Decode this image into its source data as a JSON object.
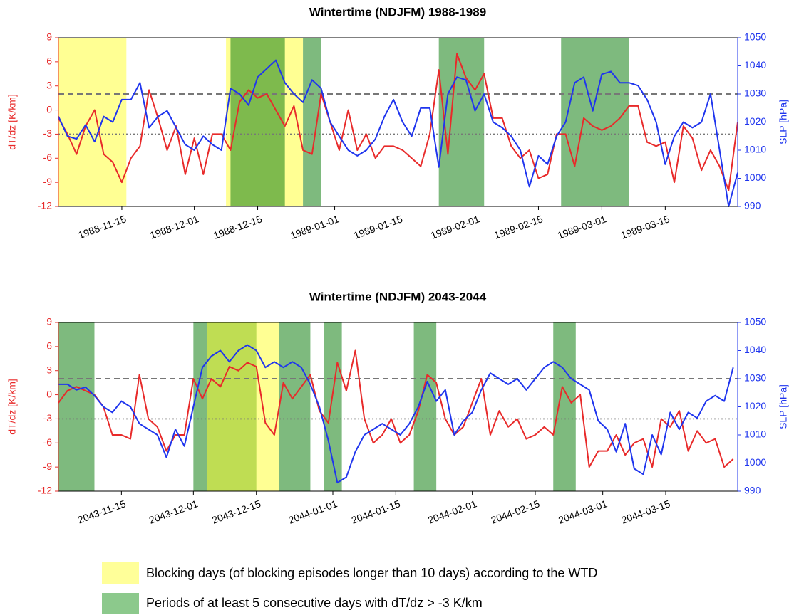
{
  "chart_data": [
    {
      "type": "line",
      "title": "Wintertime (NDJFM) 1988-1989",
      "ylabel": "dT/dz [K/km]",
      "y2label": "SLP [hPa]",
      "x": [
        "1988-11-01",
        "1988-11-03",
        "1988-11-05",
        "1988-11-07",
        "1988-11-09",
        "1988-11-11",
        "1988-11-13",
        "1988-11-15",
        "1988-11-17",
        "1988-11-19",
        "1988-11-21",
        "1988-11-23",
        "1988-11-25",
        "1988-11-27",
        "1988-11-29",
        "1988-12-01",
        "1988-12-03",
        "1988-12-05",
        "1988-12-07",
        "1988-12-09",
        "1988-12-11",
        "1988-12-13",
        "1988-12-15",
        "1988-12-17",
        "1988-12-19",
        "1988-12-21",
        "1988-12-23",
        "1988-12-25",
        "1988-12-27",
        "1988-12-29",
        "1988-12-31",
        "1989-01-02",
        "1989-01-04",
        "1989-01-06",
        "1989-01-08",
        "1989-01-10",
        "1989-01-12",
        "1989-01-14",
        "1989-01-16",
        "1989-01-18",
        "1989-01-20",
        "1989-01-22",
        "1989-01-24",
        "1989-01-26",
        "1989-01-28",
        "1989-01-30",
        "1989-02-01",
        "1989-02-03",
        "1989-02-05",
        "1989-02-07",
        "1989-02-09",
        "1989-02-11",
        "1989-02-13",
        "1989-02-15",
        "1989-02-17",
        "1989-02-19",
        "1989-02-21",
        "1989-02-23",
        "1989-02-25",
        "1989-02-27",
        "1989-03-01",
        "1989-03-03",
        "1989-03-05",
        "1989-03-07",
        "1989-03-09",
        "1989-03-11",
        "1989-03-13",
        "1989-03-15",
        "1989-03-17",
        "1989-03-19",
        "1989-03-21",
        "1989-03-23",
        "1989-03-25",
        "1989-03-27",
        "1989-03-29",
        "1989-03-31"
      ],
      "xlim": [
        "1988-11-01",
        "1989-03-31"
      ],
      "xticks": [
        "1988-11-15",
        "1988-12-01",
        "1988-12-15",
        "1989-01-01",
        "1989-01-15",
        "1989-02-01",
        "1989-02-15",
        "1989-03-01",
        "1989-03-15"
      ],
      "ylim": [
        -12,
        9
      ],
      "yticks": [
        -12,
        -9,
        -6,
        -3,
        0,
        3,
        6,
        9
      ],
      "y2lim": [
        990,
        1050
      ],
      "y2ticks": [
        990,
        1000,
        1010,
        1020,
        1030,
        1040,
        1050
      ],
      "hlines": [
        {
          "value": 2,
          "style": "dashed"
        },
        {
          "value": -3,
          "style": "dotted"
        }
      ],
      "spans": [
        {
          "start": "1988-11-01",
          "end": "1988-11-16",
          "color": "yellow"
        },
        {
          "start": "1988-12-08",
          "end": "1988-12-25",
          "color": "yellow"
        },
        {
          "start": "1988-12-09",
          "end": "1988-12-21",
          "color": "green"
        },
        {
          "start": "1988-12-25",
          "end": "1988-12-29",
          "color": "green"
        },
        {
          "start": "1989-01-24",
          "end": "1989-02-03",
          "color": "green"
        },
        {
          "start": "1989-02-20",
          "end": "1989-03-07",
          "color": "green"
        }
      ],
      "series": [
        {
          "color": "#e82a2a",
          "values": [
            -1,
            -3,
            -5.5,
            -2,
            0,
            -5.5,
            -6.5,
            -9,
            -6,
            -4.5,
            2.5,
            -1,
            -5,
            -2,
            -8,
            -3.5,
            -8,
            -3,
            -3,
            -5,
            1,
            2.5,
            1.5,
            2,
            0,
            -2,
            0.5,
            -5,
            -5.5,
            2,
            -1.5,
            -5,
            0,
            -5,
            -3,
            -6,
            -4.5,
            -4.5,
            -5,
            -6,
            -7,
            -3,
            5,
            -5.5,
            7,
            4,
            2.5,
            4.5,
            -1,
            -1,
            -4.5,
            -6,
            -5,
            -8.5,
            -8,
            -3,
            -3,
            -7,
            -1,
            -2,
            -2.5,
            -2,
            -1,
            0.5,
            0.5,
            -4,
            -4.5,
            -4,
            -9,
            -2,
            -3.5,
            -7.5,
            -5,
            -7,
            -10,
            -1.5
          ]
        },
        {
          "color": "#1f35ee",
          "axis": "y2",
          "values": [
            1022,
            1015,
            1014,
            1019,
            1013,
            1022,
            1020,
            1028,
            1028,
            1034,
            1018,
            1022,
            1024,
            1018,
            1012,
            1010,
            1015,
            1012,
            1010,
            1032,
            1030,
            1026,
            1036,
            1039,
            1042,
            1034,
            1030,
            1027,
            1035,
            1032,
            1020,
            1015,
            1010,
            1008,
            1010,
            1014,
            1022,
            1028,
            1020,
            1015,
            1025,
            1025,
            1004,
            1030,
            1036,
            1035,
            1024,
            1030,
            1020,
            1018,
            1015,
            1010,
            997,
            1008,
            1005,
            1015,
            1020,
            1034,
            1036,
            1024,
            1037,
            1038,
            1034,
            1034,
            1033,
            1028,
            1020,
            1005,
            1015,
            1020,
            1018,
            1020,
            1030,
            1010,
            990,
            1002
          ]
        }
      ]
    },
    {
      "type": "line",
      "title": "Wintertime (NDJFM) 2043-2044",
      "ylabel": "dT/dz [K/km]",
      "y2label": "SLP [hPa]",
      "x": [
        "2043-11-01",
        "2043-11-03",
        "2043-11-05",
        "2043-11-07",
        "2043-11-09",
        "2043-11-11",
        "2043-11-13",
        "2043-11-15",
        "2043-11-17",
        "2043-11-19",
        "2043-11-21",
        "2043-11-23",
        "2043-11-25",
        "2043-11-27",
        "2043-11-29",
        "2043-12-01",
        "2043-12-03",
        "2043-12-05",
        "2043-12-07",
        "2043-12-09",
        "2043-12-11",
        "2043-12-13",
        "2043-12-15",
        "2043-12-17",
        "2043-12-19",
        "2043-12-21",
        "2043-12-23",
        "2043-12-25",
        "2043-12-27",
        "2043-12-29",
        "2043-12-31",
        "2044-01-02",
        "2044-01-04",
        "2044-01-06",
        "2044-01-08",
        "2044-01-10",
        "2044-01-12",
        "2044-01-14",
        "2044-01-16",
        "2044-01-18",
        "2044-01-20",
        "2044-01-22",
        "2044-01-24",
        "2044-01-26",
        "2044-01-28",
        "2044-01-30",
        "2044-02-01",
        "2044-02-03",
        "2044-02-05",
        "2044-02-07",
        "2044-02-09",
        "2044-02-11",
        "2044-02-13",
        "2044-02-15",
        "2044-02-17",
        "2044-02-19",
        "2044-02-21",
        "2044-02-23",
        "2044-02-25",
        "2044-02-27",
        "2044-02-29",
        "2044-03-02",
        "2044-03-04",
        "2044-03-06",
        "2044-03-08",
        "2044-03-10",
        "2044-03-12",
        "2044-03-14",
        "2044-03-16",
        "2044-03-18",
        "2044-03-20",
        "2044-03-22",
        "2044-03-24",
        "2044-03-26",
        "2044-03-28",
        "2044-03-30"
      ],
      "xlim": [
        "2043-11-01",
        "2044-03-31"
      ],
      "xticks": [
        "2043-11-15",
        "2043-12-01",
        "2043-12-15",
        "2044-01-01",
        "2044-01-15",
        "2044-02-01",
        "2044-02-15",
        "2044-03-01",
        "2044-03-15"
      ],
      "ylim": [
        -12,
        9
      ],
      "yticks": [
        -12,
        -9,
        -6,
        -3,
        0,
        3,
        6,
        9
      ],
      "y2lim": [
        990,
        1050
      ],
      "y2ticks": [
        990,
        1000,
        1010,
        1020,
        1030,
        1040,
        1050
      ],
      "hlines": [
        {
          "value": 2,
          "style": "dashed"
        },
        {
          "value": -3,
          "style": "dotted"
        }
      ],
      "spans": [
        {
          "start": "2043-11-01",
          "end": "2043-11-09",
          "color": "green"
        },
        {
          "start": "2043-12-01",
          "end": "2043-12-15",
          "color": "green"
        },
        {
          "start": "2043-12-04",
          "end": "2043-12-20",
          "color": "yellow"
        },
        {
          "start": "2043-12-20",
          "end": "2043-12-27",
          "color": "green"
        },
        {
          "start": "2043-12-30",
          "end": "2044-01-03",
          "color": "green"
        },
        {
          "start": "2044-01-19",
          "end": "2044-01-24",
          "color": "green"
        },
        {
          "start": "2044-02-19",
          "end": "2044-02-24",
          "color": "green"
        }
      ],
      "series": [
        {
          "color": "#e82a2a",
          "values": [
            -1,
            0.5,
            1,
            0.5,
            0,
            -1.5,
            -5,
            -5,
            -5.5,
            2.5,
            -3,
            -4,
            -7,
            -5,
            -5,
            2,
            -0.5,
            2,
            1,
            3.5,
            3,
            4,
            3.5,
            -3.5,
            -5,
            1.5,
            -0.5,
            1,
            2.5,
            -2,
            -3.5,
            4,
            0.5,
            5.5,
            -3,
            -6,
            -5,
            -3,
            -6,
            -5,
            -2,
            2.5,
            1.5,
            -3,
            -5,
            -4,
            -1,
            2,
            -5,
            -2,
            -4,
            -3,
            -5.5,
            -5,
            -4,
            -5,
            1,
            -1,
            0,
            -9,
            -7,
            -7,
            -5,
            -7.5,
            -6,
            -5.5,
            -9,
            -3,
            -4,
            -2,
            -7,
            -4.5,
            -6,
            -5.5,
            -9,
            -8
          ]
        },
        {
          "color": "#1f35ee",
          "axis": "y2",
          "values": [
            1028,
            1028,
            1026,
            1027,
            1024,
            1020,
            1018,
            1022,
            1020,
            1014,
            1012,
            1010,
            1002,
            1012,
            1006,
            1020,
            1034,
            1038,
            1040,
            1036,
            1040,
            1042,
            1040,
            1034,
            1036,
            1034,
            1036,
            1034,
            1028,
            1020,
            1008,
            993,
            995,
            1004,
            1010,
            1012,
            1014,
            1012,
            1010,
            1014,
            1020,
            1029,
            1022,
            1026,
            1010,
            1015,
            1018,
            1026,
            1032,
            1030,
            1028,
            1030,
            1026,
            1030,
            1034,
            1036,
            1034,
            1030,
            1028,
            1026,
            1015,
            1012,
            1004,
            1014,
            998,
            996,
            1010,
            1003,
            1018,
            1012,
            1018,
            1016,
            1022,
            1024,
            1022,
            1034
          ]
        }
      ]
    }
  ],
  "legend": [
    {
      "label": "Blocking days (of blocking episodes longer than 10 days) according to the WTD",
      "color": "yellow"
    },
    {
      "label": "Periods of at least 5 consecutive days with dT/dz > -3 K/km",
      "color": "green"
    }
  ]
}
